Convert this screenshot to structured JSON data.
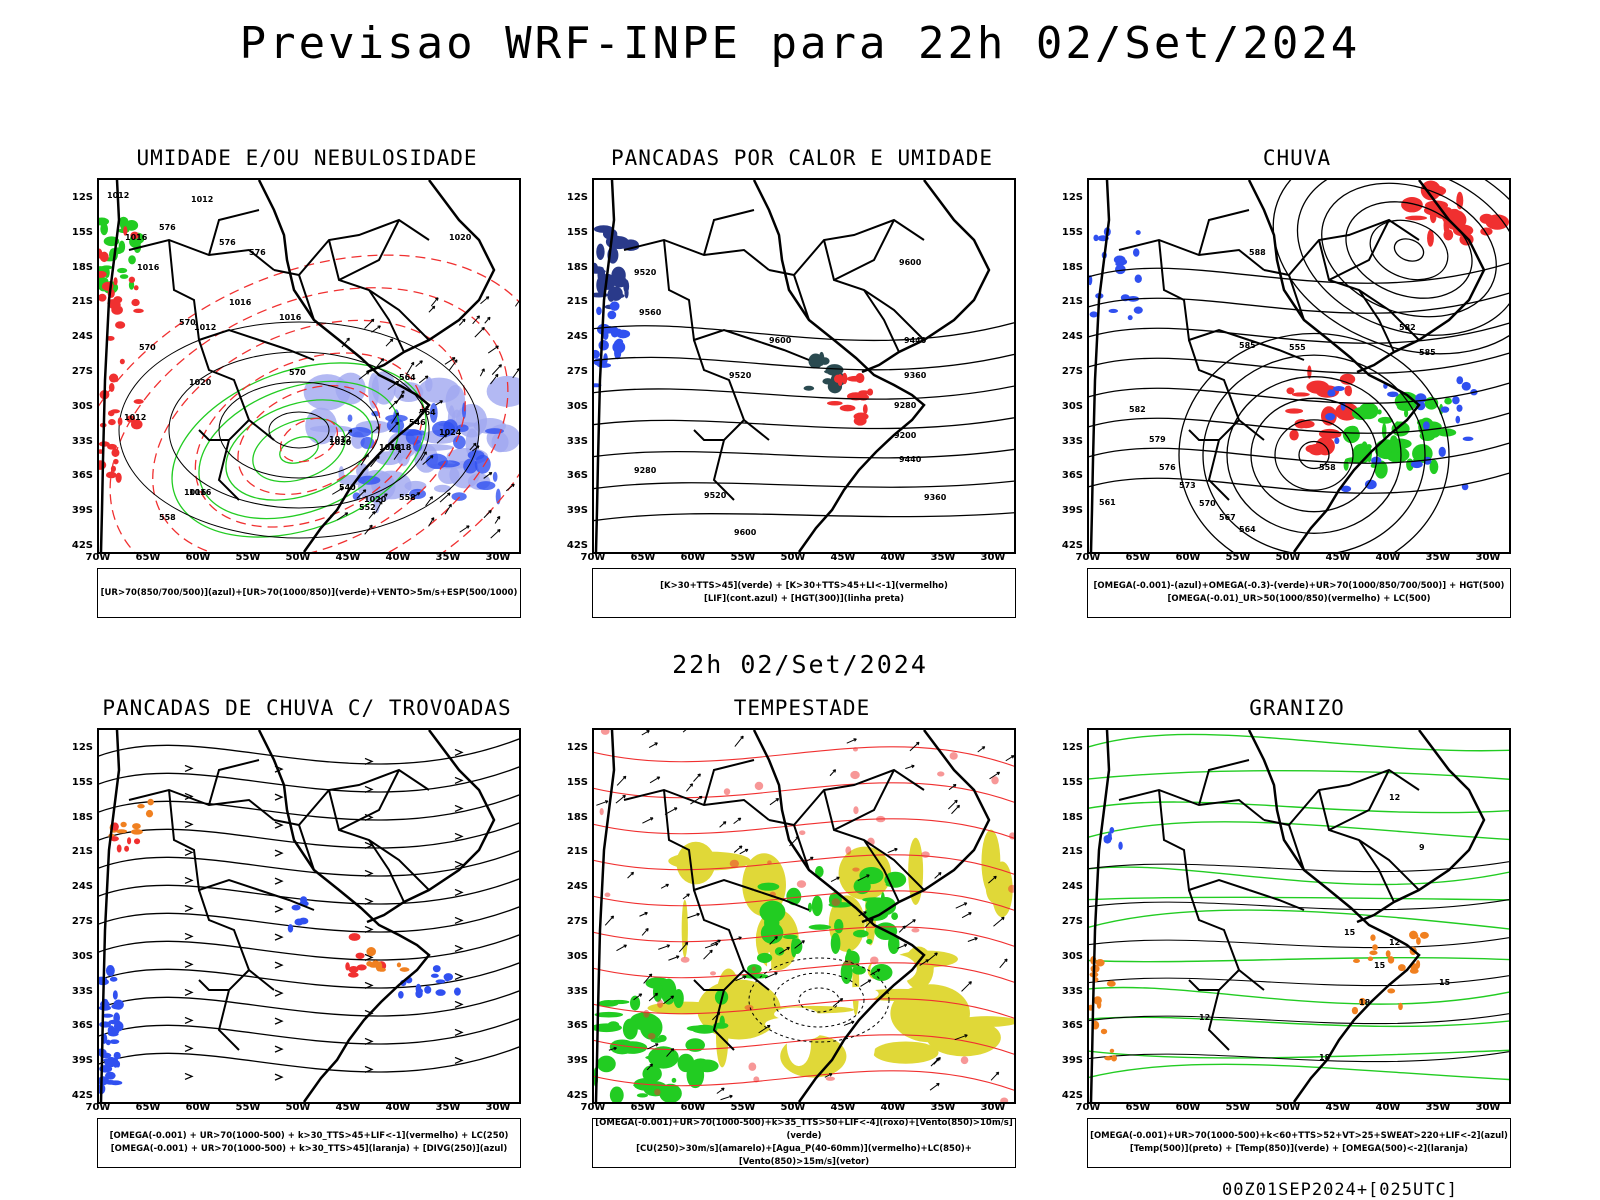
{
  "title": "Previsao WRF-INPE  para 22h 02/Set/2024",
  "subtitle": "22h 02/Set/2024",
  "run_stamp": "00Z01SEP2024+[025UTC]",
  "axes": {
    "lat_labels": [
      "12S",
      "15S",
      "18S",
      "21S",
      "24S",
      "27S",
      "30S",
      "33S",
      "36S",
      "39S",
      "42S"
    ],
    "lon_labels": [
      "70W",
      "65W",
      "60W",
      "55W",
      "50W",
      "45W",
      "40W",
      "35W",
      "30W"
    ]
  },
  "colors": {
    "blue": "#3050f0",
    "green": "#22cc22",
    "red": "#f03030",
    "orange": "#f08020",
    "yellow": "#e0d838",
    "lavender": "#a0a8f0",
    "purple": "#7a3aa0"
  },
  "panels": [
    {
      "title": "UMIDADE E/OU NEBULOSIDADE",
      "legend": [
        "[UR>70(850/700/500)](azul)+[UR>70(1000/850)](verde)+VENTO>5m/s+ESP(500/1000)"
      ],
      "labels": [
        "1012",
        "1012",
        "1016",
        "1016",
        "1016",
        "1016",
        "1020",
        "1020",
        "1018",
        "1016",
        "1020",
        "1012",
        "1012",
        "1012",
        "1018",
        "1024",
        "1020",
        "1016",
        "576",
        "576",
        "576",
        "570",
        "570",
        "570",
        "564",
        "564",
        "558",
        "552",
        "546",
        "540",
        "558"
      ]
    },
    {
      "title": "PANCADAS POR CALOR E UMIDADE",
      "legend": [
        "[K>30+TTS>45](verde) + [K>30+TTS>45+LI<-1](vermelho)",
        "[LIF](cont.azul) + [HGT(300)](linha preta)"
      ],
      "labels": [
        "9600",
        "9520",
        "9560",
        "9600",
        "9520",
        "9440",
        "9360",
        "9280",
        "9200",
        "9440",
        "9360",
        "9280",
        "9520",
        "9600"
      ]
    },
    {
      "title": "CHUVA",
      "legend": [
        "[OMEGA(-0.001)-(azul)+OMEGA(-0.3)-(verde)+UR>70(1000/850/700/500)] + HGT(500)",
        "[OMEGA(-0.01)_UR>50(1000/850)(vermelho) + LC(500)"
      ],
      "labels": [
        "588",
        "585",
        "582",
        "579",
        "576",
        "573",
        "570",
        "567",
        "564",
        "561",
        "558",
        "555",
        "582",
        "585"
      ]
    },
    {
      "title": "PANCADAS DE CHUVA C/ TROVOADAS",
      "legend": [
        "[OMEGA(-0.001) + UR>70(1000-500) + k>30_TTS>45+LIF<-1](vermelho) + LC(250)",
        "[OMEGA(-0.001) + UR>70(1000-500) + k>30_TTS>45](laranja) + [DIVG(250)](azul)"
      ],
      "labels": []
    },
    {
      "title": "TEMPESTADE",
      "legend": [
        "[OMEGA(-0.001)+UR>70(1000-500)+k>35_TTS>50+LIF<-4](roxo)+[Vento(850)>10m/s](verde)",
        "[CU(250)>30m/s](amarelo)+[Agua_P(40-60mm)](vermelho)+LC(850)+[Vento(850)>15m/s](vetor)"
      ],
      "labels": []
    },
    {
      "title": "GRANIZO",
      "legend": [
        "[OMEGA(-0.001)+UR>70(1000-500)+k<60+TTS>52+VT>25+SWEAT>220+LIF<-2](azul)",
        "[Temp(500)](preto) + [Temp(850)](verde) + [OMEGA(500)<-2](laranja)"
      ],
      "labels": [
        "15",
        "12",
        "15",
        "18",
        "12",
        "9",
        "12",
        "15",
        "18"
      ]
    }
  ]
}
